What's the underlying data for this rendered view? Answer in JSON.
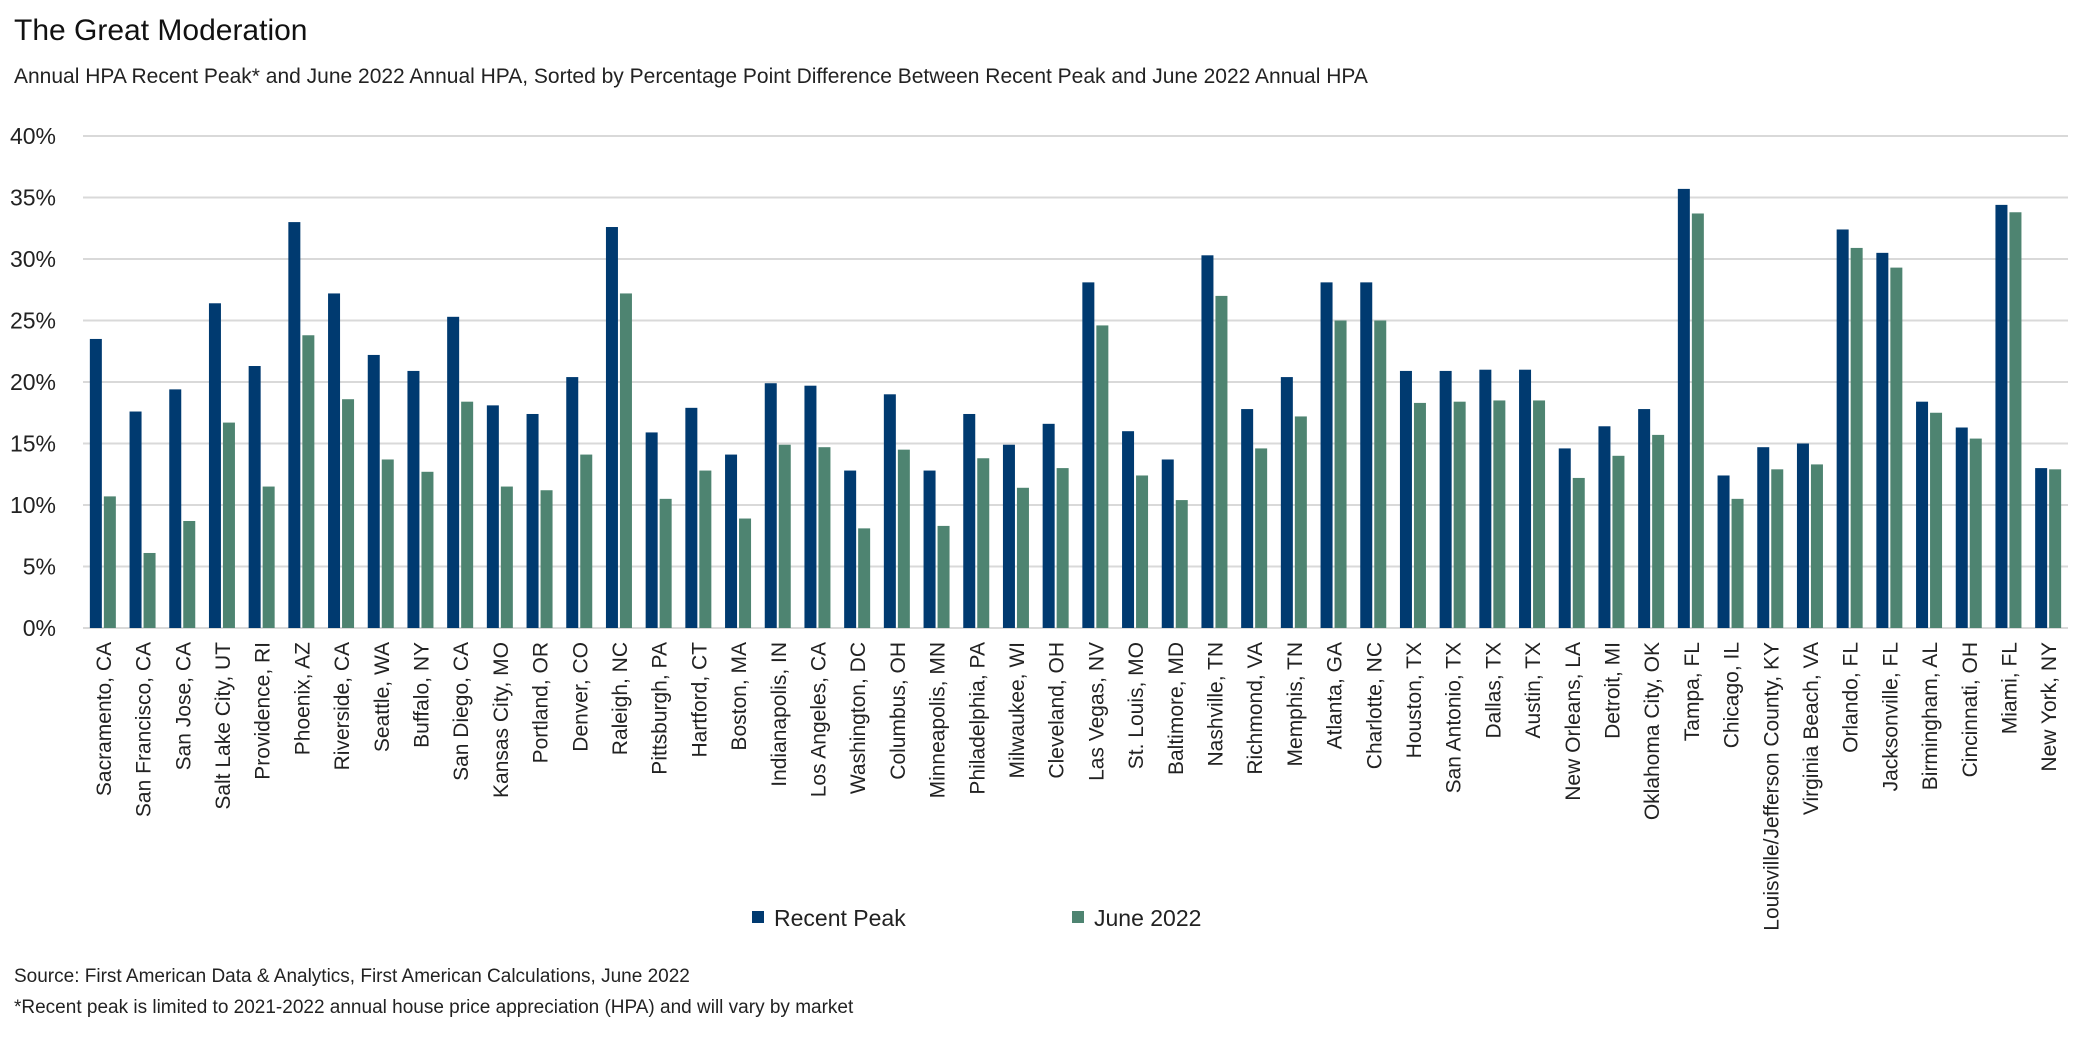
{
  "chart_data": {
    "type": "bar",
    "title": "The Great Moderation",
    "subtitle": "Annual HPA Recent Peak* and June 2022 Annual HPA, Sorted by Percentage Point Difference Between Recent Peak and June 2022 Annual HPA",
    "xlabel": "",
    "ylabel": "",
    "ylim": [
      0,
      40
    ],
    "yticks": [
      "0%",
      "5%",
      "10%",
      "15%",
      "20%",
      "25%",
      "30%",
      "35%",
      "40%"
    ],
    "grid": true,
    "legend_position": "bottom",
    "categories": [
      "Sacramento, CA",
      "San Francisco, CA",
      "San Jose, CA",
      "Salt Lake City, UT",
      "Providence, RI",
      "Phoenix, AZ",
      "Riverside, CA",
      "Seattle, WA",
      "Buffalo, NY",
      "San Diego, CA",
      "Kansas City, MO",
      "Portland, OR",
      "Denver, CO",
      "Raleigh, NC",
      "Pittsburgh, PA",
      "Hartford, CT",
      "Boston, MA",
      "Indianapolis, IN",
      "Los Angeles, CA",
      "Washington, DC",
      "Columbus, OH",
      "Minneapolis, MN",
      "Philadelphia, PA",
      "Milwaukee, WI",
      "Cleveland, OH",
      "Las Vegas, NV",
      "St. Louis, MO",
      "Baltimore, MD",
      "Nashville, TN",
      "Richmond, VA",
      "Memphis, TN",
      "Atlanta, GA",
      "Charlotte, NC",
      "Houston, TX",
      "San Antonio, TX",
      "Dallas, TX",
      "Austin, TX",
      "New Orleans, LA",
      "Detroit, MI",
      "Oklahoma City, OK",
      "Tampa, FL",
      "Chicago, IL",
      "Louisville/Jefferson County, KY",
      "Virginia Beach, VA",
      "Orlando, FL",
      "Jacksonville, FL",
      "Birmingham, AL",
      "Cincinnati, OH",
      "Miami, FL",
      "New York, NY"
    ],
    "series": [
      {
        "name": "Recent Peak",
        "color": "#003a70",
        "values": [
          23.5,
          17.6,
          19.4,
          26.4,
          21.3,
          33.0,
          27.2,
          22.2,
          20.9,
          25.3,
          18.1,
          17.4,
          20.4,
          32.6,
          15.9,
          17.9,
          14.1,
          19.9,
          19.7,
          12.8,
          19.0,
          12.8,
          17.4,
          14.9,
          16.6,
          28.1,
          16.0,
          13.7,
          30.3,
          17.8,
          20.4,
          28.1,
          28.1,
          20.9,
          20.9,
          21.0,
          21.0,
          14.6,
          16.4,
          17.8,
          35.7,
          12.4,
          14.7,
          15.0,
          32.4,
          30.5,
          18.4,
          16.3,
          34.4,
          13.0
        ]
      },
      {
        "name": "June 2022",
        "color": "#4e8471",
        "values": [
          10.7,
          6.1,
          8.7,
          16.7,
          11.5,
          23.8,
          18.6,
          13.7,
          12.7,
          18.4,
          11.5,
          11.2,
          14.1,
          27.2,
          10.5,
          12.8,
          8.9,
          14.9,
          14.7,
          8.1,
          14.5,
          8.3,
          13.8,
          11.4,
          13.0,
          24.6,
          12.4,
          10.4,
          27.0,
          14.6,
          17.2,
          25.0,
          25.0,
          18.3,
          18.4,
          18.5,
          18.5,
          12.2,
          14.0,
          15.7,
          33.7,
          10.5,
          12.9,
          13.3,
          30.9,
          29.3,
          17.5,
          15.4,
          33.8,
          12.9
        ]
      }
    ]
  },
  "footnotes": {
    "source": "Source: First American Data & Analytics, First American Calculations, June 2022",
    "note": "*Recent peak is limited to 2021-2022 annual house price appreciation (HPA) and will vary by market"
  }
}
